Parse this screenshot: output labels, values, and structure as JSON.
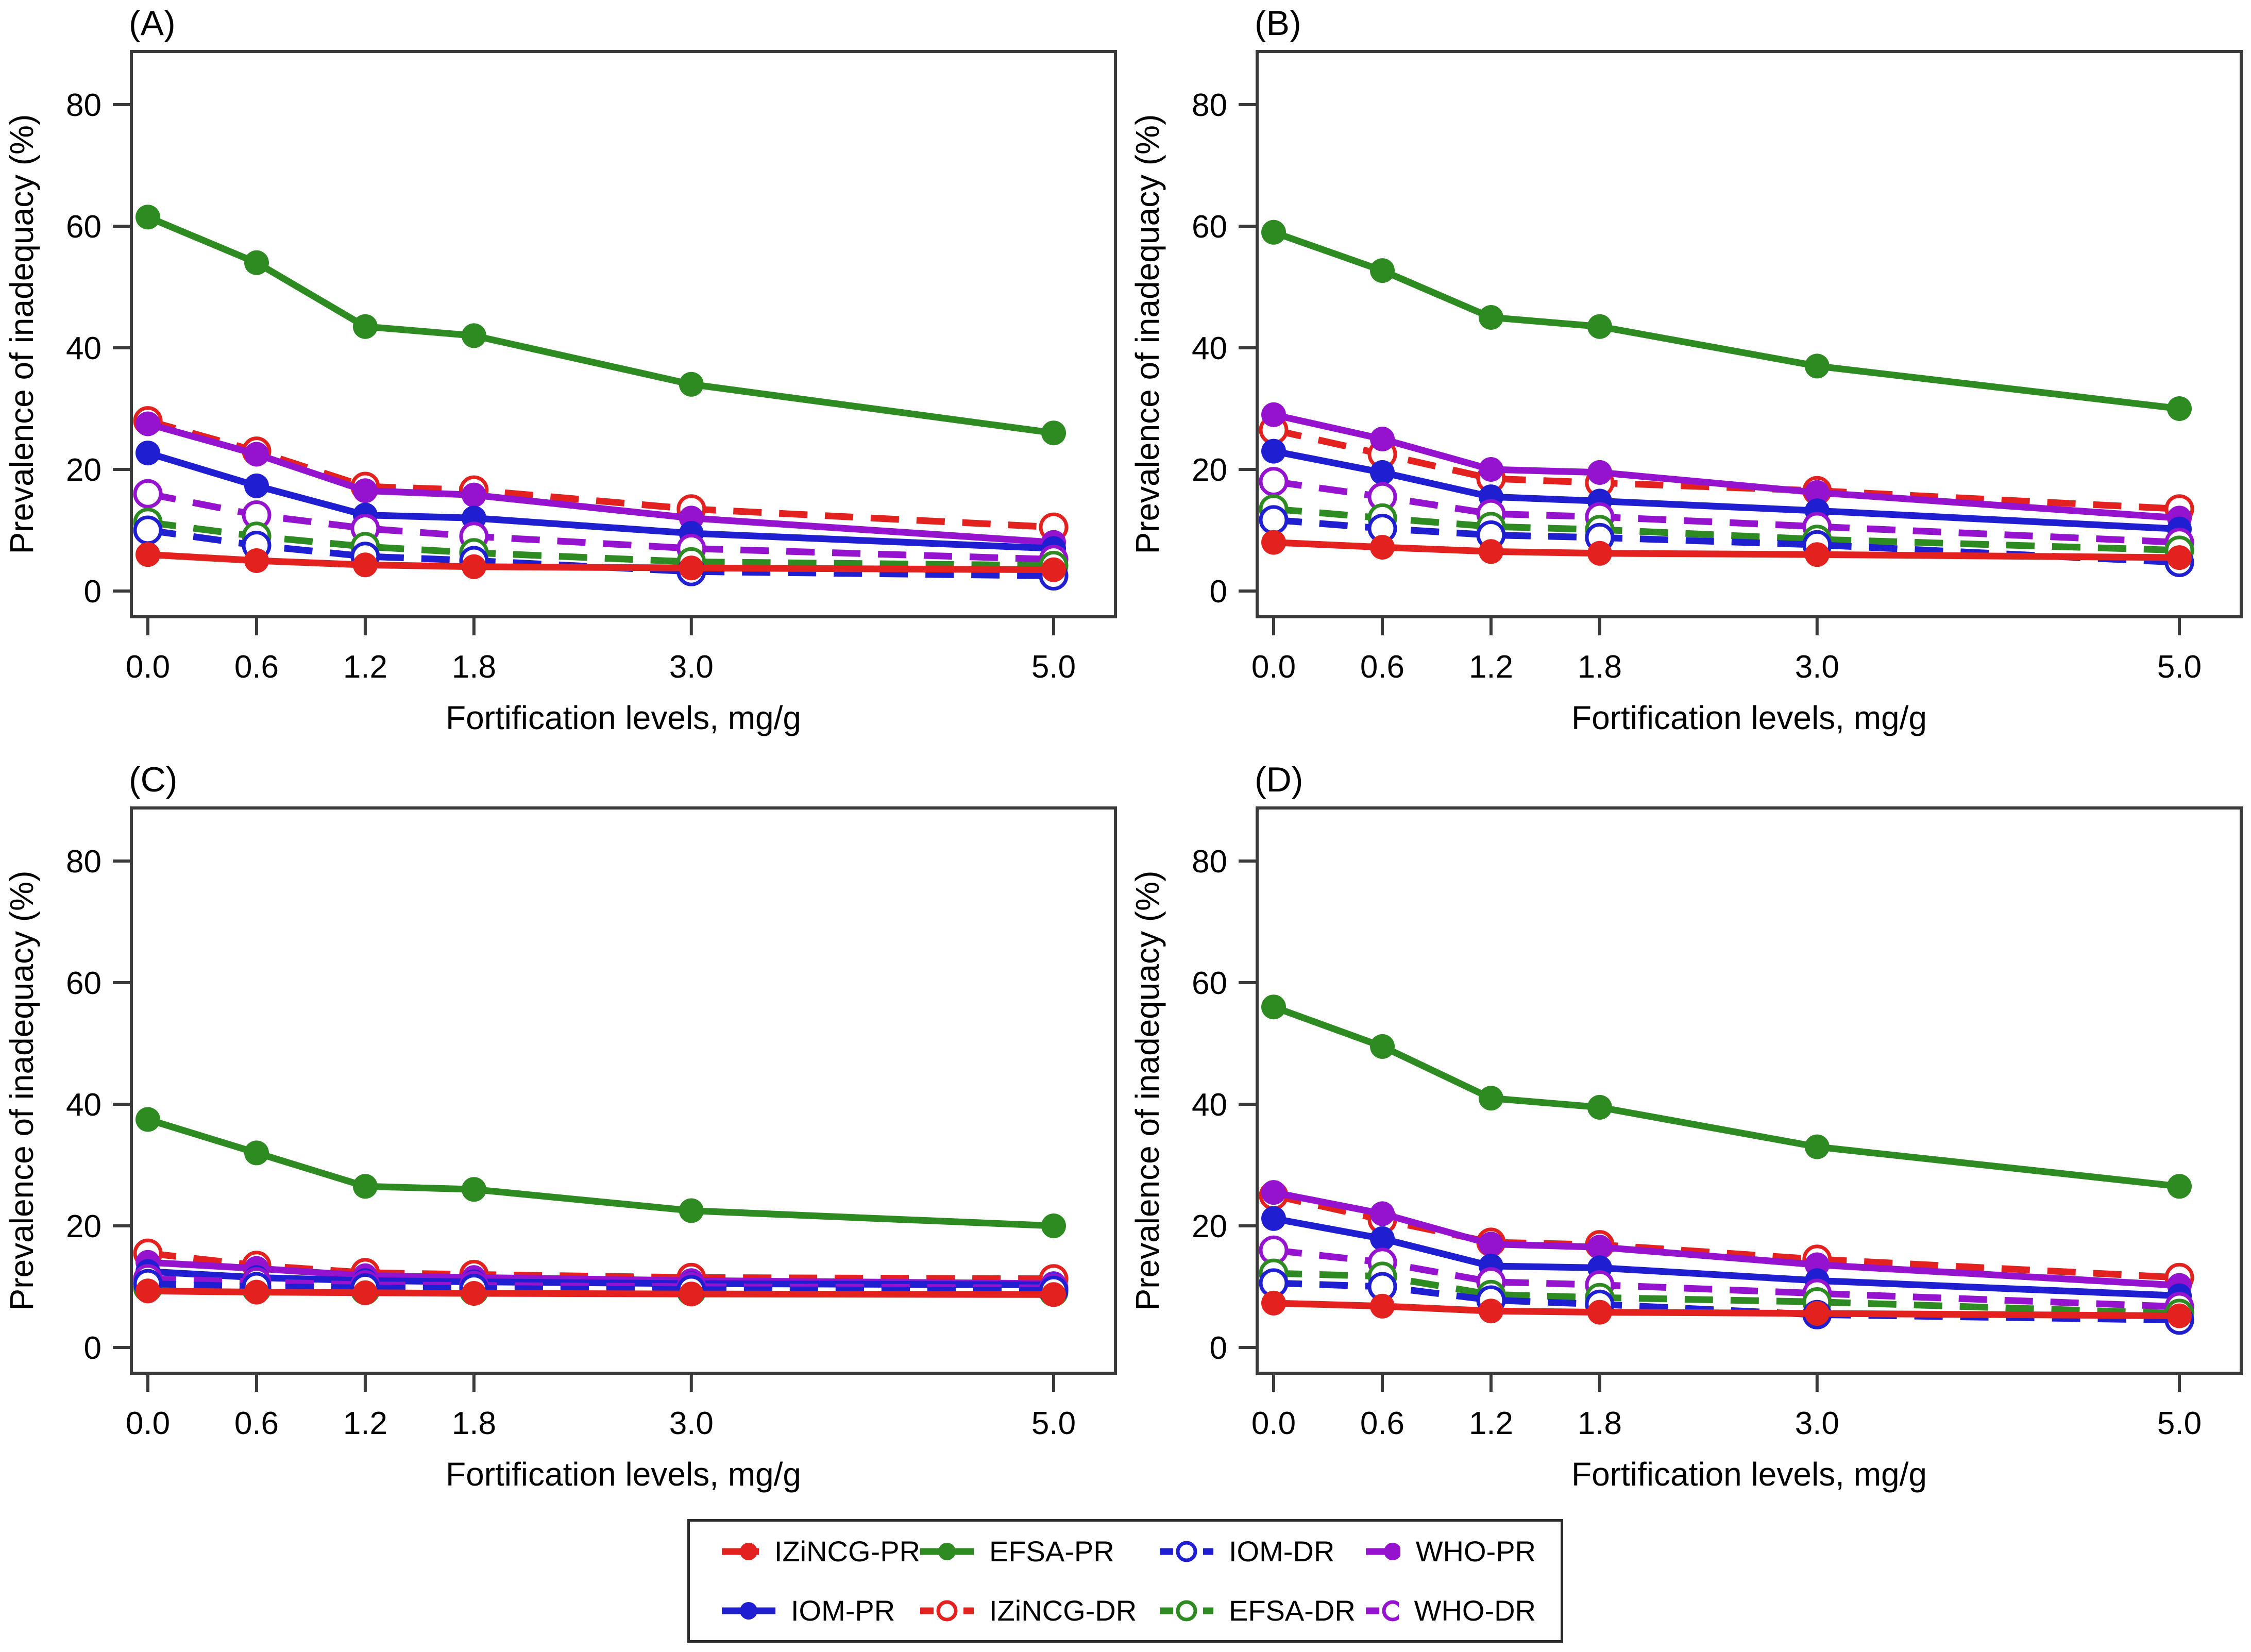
{
  "figure": {
    "xlabel": "Fortification levels, mg/g",
    "ylabel": "Prevalence of inadequacy (%)"
  },
  "axes": {
    "x_tick_labels": [
      "0.0",
      "0.6",
      "1.2",
      "1.8",
      "3.0",
      "5.0"
    ],
    "x_tick_values": [
      0,
      0.6,
      1.2,
      1.8,
      3,
      5
    ],
    "y_tick_labels": [
      "0",
      "20",
      "40",
      "60",
      "80"
    ],
    "y_tick_values": [
      0,
      20,
      40,
      60,
      80
    ],
    "ylim": [
      0,
      80
    ],
    "xlim": [
      0,
      5
    ],
    "grid": "off",
    "legend_position": "bottom-center"
  },
  "colors": {
    "red": "#E3211E",
    "blue": "#1F1FD1",
    "green": "#2E8B22",
    "purple": "#9513CE"
  },
  "legend": {
    "items": [
      {
        "label": "IZiNCG-PR",
        "color": "red",
        "marker": "filled",
        "line": "solid"
      },
      {
        "label": "EFSA-PR",
        "color": "green",
        "marker": "filled",
        "line": "solid"
      },
      {
        "label": "IOM-DR",
        "color": "blue",
        "marker": "open",
        "line": "dashed"
      },
      {
        "label": "WHO-PR",
        "color": "purple",
        "marker": "filled",
        "line": "solid"
      },
      {
        "label": "IOM-PR",
        "color": "blue",
        "marker": "filled",
        "line": "solid"
      },
      {
        "label": "IZiNCG-DR",
        "color": "red",
        "marker": "open",
        "line": "dashed"
      },
      {
        "label": "EFSA-DR",
        "color": "green",
        "marker": "open",
        "line": "dashed"
      },
      {
        "label": "WHO-DR",
        "color": "purple",
        "marker": "open",
        "line": "dashed"
      }
    ]
  },
  "chart_data": [
    {
      "type": "line",
      "panel_label": "(A)",
      "x": [
        0,
        0.6,
        1.2,
        1.8,
        3,
        5
      ],
      "series": [
        {
          "name": "IZiNCG-DR",
          "color": "red",
          "style": "dashed-open",
          "values": [
            28,
            23,
            17.2,
            16.6,
            13.5,
            10.5
          ]
        },
        {
          "name": "WHO-PR",
          "color": "purple",
          "style": "solid-filled",
          "values": [
            27.5,
            22.5,
            16.5,
            15.8,
            12,
            8
          ]
        },
        {
          "name": "IOM-PR",
          "color": "blue",
          "style": "solid-filled",
          "values": [
            22.7,
            17.3,
            12.5,
            12,
            9.5,
            7
          ]
        },
        {
          "name": "WHO-DR",
          "color": "purple",
          "style": "dashed-open",
          "values": [
            16,
            12.5,
            10.3,
            9,
            7,
            5.2
          ]
        },
        {
          "name": "EFSA-DR",
          "color": "green",
          "style": "dashed-open",
          "values": [
            11.3,
            9,
            7.3,
            6.3,
            4.8,
            4.2
          ]
        },
        {
          "name": "IOM-DR",
          "color": "blue",
          "style": "dashed-open",
          "values": [
            10,
            7.5,
            5.7,
            5,
            3.2,
            2.5
          ]
        },
        {
          "name": "EFSA-PR",
          "color": "green",
          "style": "solid-filled",
          "values": [
            61.5,
            54,
            43.5,
            42,
            34,
            26
          ]
        },
        {
          "name": "IZiNCG-PR",
          "color": "red",
          "style": "solid-filled",
          "values": [
            6,
            5,
            4.3,
            4,
            3.8,
            3.5
          ]
        }
      ]
    },
    {
      "type": "line",
      "panel_label": "(B)",
      "x": [
        0,
        0.6,
        1.2,
        1.8,
        3,
        5
      ],
      "series": [
        {
          "name": "IZiNCG-DR",
          "color": "red",
          "style": "dashed-open",
          "values": [
            26.5,
            22.5,
            18.5,
            17.8,
            16.5,
            13.5
          ]
        },
        {
          "name": "WHO-PR",
          "color": "purple",
          "style": "solid-filled",
          "values": [
            29,
            25,
            20,
            19.5,
            16.2,
            12
          ]
        },
        {
          "name": "IOM-PR",
          "color": "blue",
          "style": "solid-filled",
          "values": [
            23,
            19.5,
            15.5,
            14.8,
            13.2,
            10.2
          ]
        },
        {
          "name": "WHO-DR",
          "color": "purple",
          "style": "dashed-open",
          "values": [
            18,
            15.5,
            12.7,
            12.2,
            10.6,
            8
          ]
        },
        {
          "name": "EFSA-DR",
          "color": "green",
          "style": "dashed-open",
          "values": [
            13.5,
            12,
            10.6,
            10.1,
            8.5,
            6.7
          ]
        },
        {
          "name": "IOM-DR",
          "color": "blue",
          "style": "dashed-open",
          "values": [
            11.7,
            10.3,
            9.2,
            8.8,
            7.6,
            4.7
          ]
        },
        {
          "name": "EFSA-PR",
          "color": "green",
          "style": "solid-filled",
          "values": [
            59,
            52.7,
            45,
            43.5,
            37,
            30
          ]
        },
        {
          "name": "IZiNCG-PR",
          "color": "red",
          "style": "solid-filled",
          "values": [
            8,
            7.2,
            6.5,
            6.2,
            6,
            5.5
          ]
        }
      ]
    },
    {
      "type": "line",
      "panel_label": "(C)",
      "x": [
        0,
        0.6,
        1.2,
        1.8,
        3,
        5
      ],
      "series": [
        {
          "name": "IZiNCG-DR",
          "color": "red",
          "style": "dashed-open",
          "values": [
            15.5,
            13.5,
            12.3,
            12,
            11.5,
            11.3
          ]
        },
        {
          "name": "WHO-PR",
          "color": "purple",
          "style": "solid-filled",
          "values": [
            14,
            13,
            11.8,
            11.5,
            11,
            10.5
          ]
        },
        {
          "name": "IOM-PR",
          "color": "blue",
          "style": "solid-filled",
          "values": [
            12.5,
            11.5,
            11,
            10.8,
            10.5,
            10.3
          ]
        },
        {
          "name": "WHO-DR",
          "color": "purple",
          "style": "dashed-open",
          "values": [
            11.3,
            10.8,
            10.3,
            10.2,
            10,
            9.8
          ]
        },
        {
          "name": "EFSA-DR",
          "color": "green",
          "style": "dashed-open",
          "values": [
            9.8,
            9.6,
            9.4,
            9.3,
            9.2,
            9.1
          ]
        },
        {
          "name": "IOM-DR",
          "color": "blue",
          "style": "dashed-open",
          "values": [
            10.5,
            10,
            9.8,
            9.7,
            9.5,
            9.4
          ]
        },
        {
          "name": "EFSA-PR",
          "color": "green",
          "style": "solid-filled",
          "values": [
            37.5,
            32,
            26.5,
            26,
            22.5,
            20
          ]
        },
        {
          "name": "IZiNCG-PR",
          "color": "red",
          "style": "solid-filled",
          "values": [
            9.3,
            9.1,
            9,
            8.9,
            8.8,
            8.7
          ]
        }
      ]
    },
    {
      "type": "line",
      "panel_label": "(D)",
      "x": [
        0,
        0.6,
        1.2,
        1.8,
        3,
        5
      ],
      "series": [
        {
          "name": "IZiNCG-DR",
          "color": "red",
          "style": "dashed-open",
          "values": [
            25,
            21,
            17.3,
            16.9,
            14.5,
            11.5
          ]
        },
        {
          "name": "WHO-PR",
          "color": "purple",
          "style": "solid-filled",
          "values": [
            25.5,
            22,
            17,
            16.5,
            13.6,
            10.2
          ]
        },
        {
          "name": "IOM-PR",
          "color": "blue",
          "style": "solid-filled",
          "values": [
            21.2,
            17.9,
            13.4,
            13.1,
            11,
            8.5
          ]
        },
        {
          "name": "WHO-DR",
          "color": "purple",
          "style": "dashed-open",
          "values": [
            16,
            14,
            10.8,
            10.3,
            8.9,
            6.7
          ]
        },
        {
          "name": "EFSA-DR",
          "color": "green",
          "style": "dashed-open",
          "values": [
            12.2,
            11.7,
            8.7,
            8.2,
            7.5,
            5.6
          ]
        },
        {
          "name": "IOM-DR",
          "color": "blue",
          "style": "dashed-open",
          "values": [
            10.6,
            10,
            7.8,
            7.1,
            5.4,
            4.5
          ]
        },
        {
          "name": "EFSA-PR",
          "color": "green",
          "style": "solid-filled",
          "values": [
            56,
            49.5,
            41,
            39.5,
            33,
            26.5
          ]
        },
        {
          "name": "IZiNCG-PR",
          "color": "red",
          "style": "solid-filled",
          "values": [
            7.3,
            6.8,
            6,
            5.8,
            5.6,
            5.2
          ]
        }
      ]
    }
  ]
}
